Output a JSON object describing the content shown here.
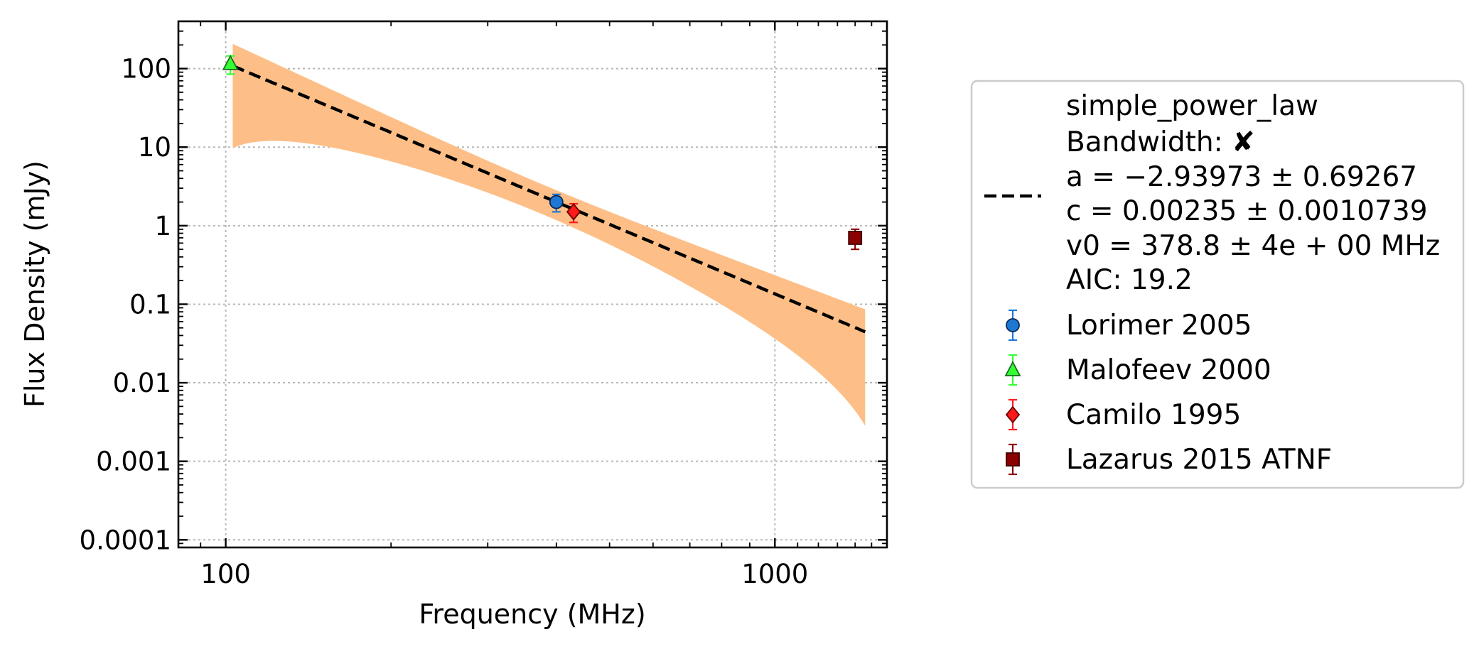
{
  "chart_data": {
    "type": "scatter",
    "xlabel": "Frequency (MHz)",
    "ylabel": "Flux Density (mJy)",
    "xscale": "log",
    "yscale": "log",
    "xlim": [
      82,
      1600
    ],
    "ylim": [
      8e-05,
      400
    ],
    "grid": true,
    "legend_position": "right, outside plot",
    "x_tick_labels": [
      "100",
      "1000"
    ],
    "y_tick_labels": [
      "100",
      "10",
      "1",
      "0.1",
      "0.01",
      "0.001",
      "0.0001"
    ],
    "fit": {
      "model_name": "simple_power_law",
      "line_style": "dashed",
      "color": "#000000",
      "band_color": "#fdbf87",
      "x_range": [
        103,
        1460
      ],
      "params": {
        "a": -2.93973,
        "a_err": 0.69267,
        "c": 0.00235,
        "c_err": 0.0010739,
        "v0": 378.8
      },
      "legend_lines": [
        "simple_power_law",
        "Bandwidth: ✘",
        "a = −2.93973 ± 0.69267",
        "c = 0.00235 ± 0.0010739",
        "v0 = 378.8 ± 4e + 00 MHz",
        "AIC: 19.2"
      ]
    },
    "series": [
      {
        "name": "Lorimer 2005",
        "marker": "circle",
        "color": "#1f77d4",
        "edge": "#0a2a55",
        "points": [
          {
            "x": 400,
            "y": 2.0,
            "yerr_lo": 0.5,
            "yerr_hi": 0.5
          }
        ]
      },
      {
        "name": "Malofeev 2000",
        "marker": "triangle",
        "color": "#33ff33",
        "edge": "#1a6b1a",
        "points": [
          {
            "x": 102,
            "y": 115,
            "yerr_lo": 30,
            "yerr_hi": 30
          }
        ]
      },
      {
        "name": "Camilo 1995",
        "marker": "diamond",
        "color": "#ff1a1a",
        "edge": "#6b0000",
        "points": [
          {
            "x": 430,
            "y": 1.5,
            "yerr_lo": 0.4,
            "yerr_hi": 0.4
          }
        ]
      },
      {
        "name": "Lazarus 2015 ATNF",
        "marker": "square",
        "color": "#8b0000",
        "edge": "#3d0000",
        "points": [
          {
            "x": 1400,
            "y": 0.7,
            "yerr_lo": 0.2,
            "yerr_hi": 0.2
          }
        ]
      }
    ]
  }
}
